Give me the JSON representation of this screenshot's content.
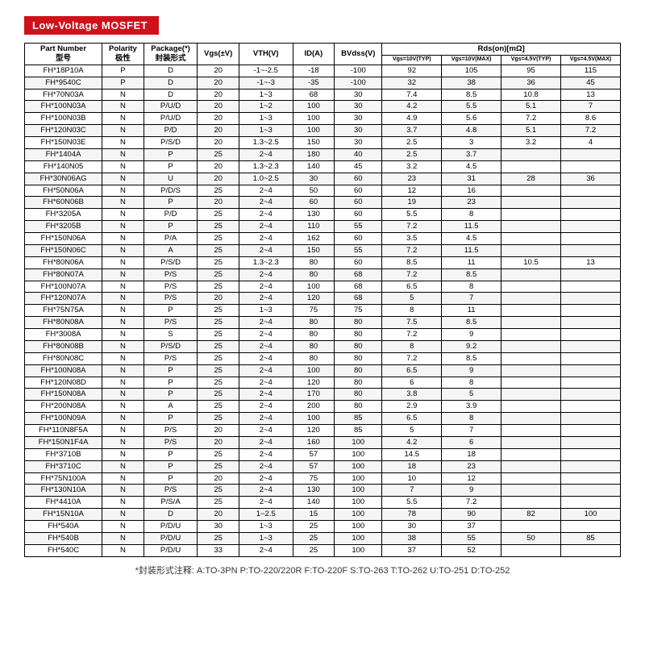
{
  "title": "Low-Voltage MOSFET",
  "footnote": "*封装形式注释:  A:TO-3PN  P:TO-220/220R  F:TO-220F  S:TO-263  T:TO-262  U:TO-251  D:TO-252",
  "headers": {
    "part": "Part Number\n型号",
    "polarity": "Polarity\n极性",
    "package": "Package(*)\n封装形式",
    "vgs": "Vgs(±V)",
    "vth": "VTH(V)",
    "id": "ID(A)",
    "bvdss": "BVdss(V)",
    "rdson": "Rds(on)[mΩ]",
    "sub": [
      "Vgs=10V(TYP)",
      "Vgs=10V(MAX)",
      "Vgs=4.5V(TYP)",
      "Vgs=4.5V(MAX)"
    ]
  },
  "col_widths": [
    "13%",
    "7%",
    "9%",
    "7%",
    "9%",
    "7%",
    "8%",
    "10%",
    "10%",
    "10%",
    "10%"
  ],
  "rows": [
    [
      "FH*18P10A",
      "P",
      "D",
      "20",
      "-1~-2.5",
      "-18",
      "-100",
      "92",
      "105",
      "95",
      "115"
    ],
    [
      "FH*9540C",
      "P",
      "D",
      "20",
      "-1~-3",
      "-35",
      "-100",
      "32",
      "38",
      "36",
      "45"
    ],
    [
      "FH*70N03A",
      "N",
      "D",
      "20",
      "1~3",
      "68",
      "30",
      "7.4",
      "8.5",
      "10.8",
      "13"
    ],
    [
      "FH*100N03A",
      "N",
      "P/U/D",
      "20",
      "1~2",
      "100",
      "30",
      "4.2",
      "5.5",
      "5.1",
      "7"
    ],
    [
      "FH*100N03B",
      "N",
      "P/U/D",
      "20",
      "1~3",
      "100",
      "30",
      "4.9",
      "5.6",
      "7.2",
      "8.6"
    ],
    [
      "FH*120N03C",
      "N",
      "P/D",
      "20",
      "1~3",
      "100",
      "30",
      "3.7",
      "4.8",
      "5.1",
      "7.2"
    ],
    [
      "FH*150N03E",
      "N",
      "P/S/D",
      "20",
      "1.3~2.5",
      "150",
      "30",
      "2.5",
      "3",
      "3.2",
      "4"
    ],
    [
      "FH*1404A",
      "N",
      "P",
      "25",
      "2~4",
      "180",
      "40",
      "2.5",
      "3.7",
      "",
      ""
    ],
    [
      "FH*140N05",
      "N",
      "P",
      "20",
      "1.3~2.3",
      "140",
      "45",
      "3.2",
      "4.5",
      "",
      ""
    ],
    [
      "FH*30N06AG",
      "N",
      "U",
      "20",
      "1.0~2.5",
      "30",
      "60",
      "23",
      "31",
      "28",
      "36"
    ],
    [
      "FH*50N06A",
      "N",
      "P/D/S",
      "25",
      "2~4",
      "50",
      "60",
      "12",
      "16",
      "",
      ""
    ],
    [
      "FH*60N06B",
      "N",
      "P",
      "20",
      "2~4",
      "60",
      "60",
      "19",
      "23",
      "",
      ""
    ],
    [
      "FH*3205A",
      "N",
      "P/D",
      "25",
      "2~4",
      "130",
      "60",
      "5.5",
      "8",
      "",
      ""
    ],
    [
      "FH*3205B",
      "N",
      "P",
      "25",
      "2~4",
      "110",
      "55",
      "7.2",
      "11.5",
      "",
      ""
    ],
    [
      "FH*150N06A",
      "N",
      "P/A",
      "25",
      "2~4",
      "162",
      "60",
      "3.5",
      "4.5",
      "",
      ""
    ],
    [
      "FH*150N06C",
      "N",
      "A",
      "25",
      "2~4",
      "150",
      "55",
      "7.2",
      "11.5",
      "",
      ""
    ],
    [
      "FH*80N06A",
      "N",
      "P/S/D",
      "25",
      "1.3~2.3",
      "80",
      "60",
      "8.5",
      "11",
      "10.5",
      "13"
    ],
    [
      "FH*80N07A",
      "N",
      "P/S",
      "25",
      "2~4",
      "80",
      "68",
      "7.2",
      "8.5",
      "",
      ""
    ],
    [
      "FH*100N07A",
      "N",
      "P/S",
      "25",
      "2~4",
      "100",
      "68",
      "6.5",
      "8",
      "",
      ""
    ],
    [
      "FH*120N07A",
      "N",
      "P/S",
      "20",
      "2~4",
      "120",
      "68",
      "5",
      "7",
      "",
      ""
    ],
    [
      "FH*75N75A",
      "N",
      "P",
      "25",
      "1~3",
      "75",
      "75",
      "8",
      "11",
      "",
      ""
    ],
    [
      "FH*80N08A",
      "N",
      "P/S",
      "25",
      "2~4",
      "80",
      "80",
      "7.5",
      "8.5",
      "",
      ""
    ],
    [
      "FH*3008A",
      "N",
      "S",
      "25",
      "2~4",
      "80",
      "80",
      "7.2",
      "9",
      "",
      ""
    ],
    [
      "FH*80N08B",
      "N",
      "P/S/D",
      "25",
      "2~4",
      "80",
      "80",
      "8",
      "9.2",
      "",
      ""
    ],
    [
      "FH*80N08C",
      "N",
      "P/S",
      "25",
      "2~4",
      "80",
      "80",
      "7.2",
      "8.5",
      "",
      ""
    ],
    [
      "FH*100N08A",
      "N",
      "P",
      "25",
      "2~4",
      "100",
      "80",
      "6.5",
      "9",
      "",
      ""
    ],
    [
      "FH*120N08D",
      "N",
      "P",
      "25",
      "2~4",
      "120",
      "80",
      "6",
      "8",
      "",
      ""
    ],
    [
      "FH*150N08A",
      "N",
      "P",
      "25",
      "2~4",
      "170",
      "80",
      "3.8",
      "5",
      "",
      ""
    ],
    [
      "FH*200N08A",
      "N",
      "A",
      "25",
      "2~4",
      "200",
      "80",
      "2.9",
      "3.9",
      "",
      ""
    ],
    [
      "FH*100N09A",
      "N",
      "P",
      "25",
      "2~4",
      "100",
      "85",
      "6.5",
      "8",
      "",
      ""
    ],
    [
      "FH*110N8F5A",
      "N",
      "P/S",
      "20",
      "2~4",
      "120",
      "85",
      "5",
      "7",
      "",
      ""
    ],
    [
      "FH*150N1F4A",
      "N",
      "P/S",
      "20",
      "2~4",
      "160",
      "100",
      "4.2",
      "6",
      "",
      ""
    ],
    [
      "FH*3710B",
      "N",
      "P",
      "25",
      "2~4",
      "57",
      "100",
      "14.5",
      "18",
      "",
      ""
    ],
    [
      "FH*3710C",
      "N",
      "P",
      "25",
      "2~4",
      "57",
      "100",
      "18",
      "23",
      "",
      ""
    ],
    [
      "FH*75N100A",
      "N",
      "P",
      "20",
      "2~4",
      "75",
      "100",
      "10",
      "12",
      "",
      ""
    ],
    [
      "FH*130N10A",
      "N",
      "P/S",
      "25",
      "2~4",
      "130",
      "100",
      "7",
      "9",
      "",
      ""
    ],
    [
      "FH*4410A",
      "N",
      "P/S/A",
      "25",
      "2~4",
      "140",
      "100",
      "5.5",
      "7.2",
      "",
      ""
    ],
    [
      "FH*15N10A",
      "N",
      "D",
      "20",
      "1~2.5",
      "15",
      "100",
      "78",
      "90",
      "82",
      "100"
    ],
    [
      "FH*540A",
      "N",
      "P/D/U",
      "30",
      "1~3",
      "25",
      "100",
      "30",
      "37",
      "",
      ""
    ],
    [
      "FH*540B",
      "N",
      "P/D/U",
      "25",
      "1~3",
      "25",
      "100",
      "38",
      "55",
      "50",
      "85"
    ],
    [
      "FH*540C",
      "N",
      "P/D/U",
      "33",
      "2~4",
      "25",
      "100",
      "37",
      "52",
      "",
      ""
    ]
  ]
}
